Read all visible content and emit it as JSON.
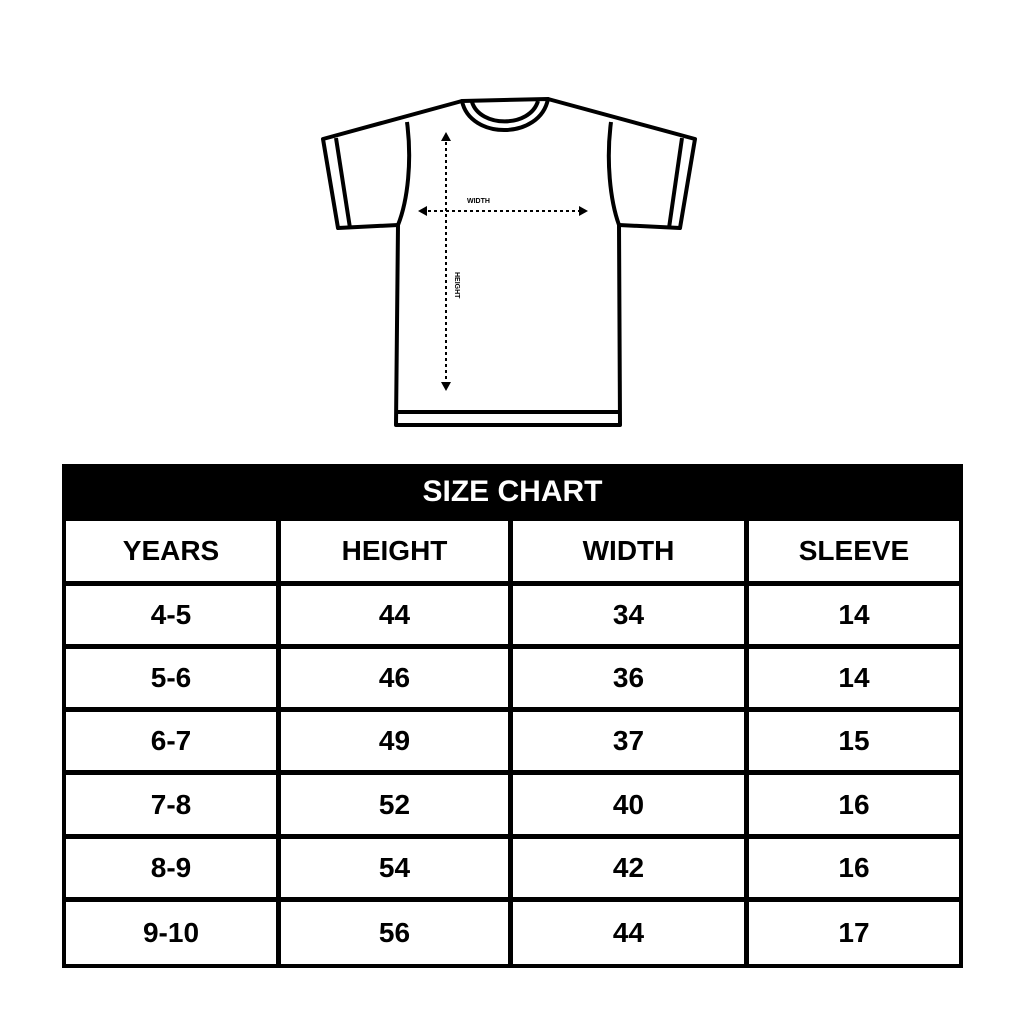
{
  "diagram": {
    "width_label": "WIDTH",
    "height_label": "HEIGHT"
  },
  "table": {
    "title": "SIZE CHART",
    "headers": [
      "YEARS",
      "HEIGHT",
      "WIDTH",
      "SLEEVE"
    ],
    "rows": [
      [
        "4-5",
        "44",
        "34",
        "14"
      ],
      [
        "5-6",
        "46",
        "36",
        "14"
      ],
      [
        "6-7",
        "49",
        "37",
        "15"
      ],
      [
        "7-8",
        "52",
        "40",
        "16"
      ],
      [
        "8-9",
        "54",
        "42",
        "16"
      ],
      [
        "9-10",
        "56",
        "44",
        "17"
      ]
    ]
  }
}
